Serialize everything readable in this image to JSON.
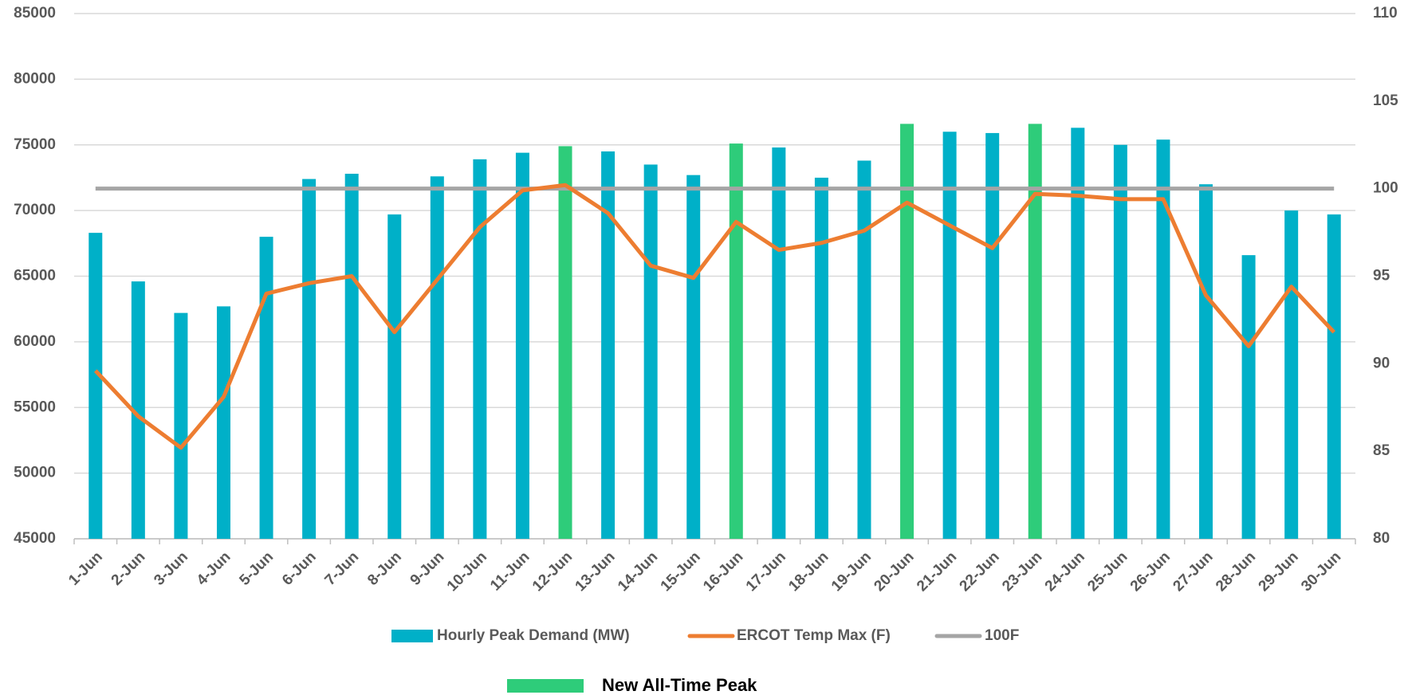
{
  "chart_data": {
    "type": "bar_line",
    "categories": [
      "1-Jun",
      "2-Jun",
      "3-Jun",
      "4-Jun",
      "5-Jun",
      "6-Jun",
      "7-Jun",
      "8-Jun",
      "9-Jun",
      "10-Jun",
      "11-Jun",
      "12-Jun",
      "13-Jun",
      "14-Jun",
      "15-Jun",
      "16-Jun",
      "17-Jun",
      "18-Jun",
      "19-Jun",
      "20-Jun",
      "21-Jun",
      "22-Jun",
      "23-Jun",
      "24-Jun",
      "25-Jun",
      "26-Jun",
      "27-Jun",
      "28-Jun",
      "29-Jun",
      "30-Jun"
    ],
    "series": [
      {
        "name": "Hourly Peak Demand (MW)",
        "type": "bar",
        "color": "#00b0c8",
        "point_colors": [
          "#00b0c8",
          "#00b0c8",
          "#00b0c8",
          "#00b0c8",
          "#00b0c8",
          "#00b0c8",
          "#00b0c8",
          "#00b0c8",
          "#00b0c8",
          "#00b0c8",
          "#00b0c8",
          "#2ecc7a",
          "#00b0c8",
          "#00b0c8",
          "#00b0c8",
          "#2ecc7a",
          "#00b0c8",
          "#00b0c8",
          "#00b0c8",
          "#2ecc7a",
          "#00b0c8",
          "#00b0c8",
          "#2ecc7a",
          "#00b0c8",
          "#00b0c8",
          "#00b0c8",
          "#00b0c8",
          "#00b0c8",
          "#00b0c8",
          "#00b0c8"
        ],
        "values": [
          68300,
          64600,
          62200,
          62700,
          68000,
          72400,
          72800,
          69700,
          72600,
          73900,
          74400,
          74900,
          74500,
          73500,
          72700,
          75100,
          74800,
          72500,
          73800,
          76600,
          76000,
          75900,
          76600,
          76300,
          75000,
          75400,
          72000,
          66600,
          70000,
          69700
        ]
      },
      {
        "name": "ERCOT Temp Max (F)",
        "type": "line",
        "axis": "y2",
        "color": "#ed7d31",
        "values": [
          89.6,
          87.0,
          85.2,
          88.1,
          94.0,
          94.6,
          95.0,
          91.8,
          94.8,
          97.8,
          99.9,
          100.2,
          98.6,
          95.6,
          94.9,
          98.1,
          96.5,
          96.9,
          97.6,
          99.2,
          97.9,
          96.6,
          99.7,
          99.6,
          99.4,
          99.4,
          93.9,
          91.0,
          94.4,
          91.8
        ]
      },
      {
        "name": "100F",
        "type": "line",
        "axis": "y2",
        "color": "#a5a5a5",
        "values": [
          100,
          100,
          100,
          100,
          100,
          100,
          100,
          100,
          100,
          100,
          100,
          100,
          100,
          100,
          100,
          100,
          100,
          100,
          100,
          100,
          100,
          100,
          100,
          100,
          100,
          100,
          100,
          100,
          100,
          100
        ]
      }
    ],
    "highlight_legend": {
      "label": "New All-Time Peak",
      "color": "#2ecc7a"
    },
    "ylim": [
      45000,
      85000
    ],
    "yticks": [
      45000,
      50000,
      55000,
      60000,
      65000,
      70000,
      75000,
      80000,
      85000
    ],
    "y2lim": [
      80,
      110
    ],
    "y2ticks": [
      80,
      85,
      90,
      95,
      100,
      105,
      110
    ],
    "grid": true
  }
}
